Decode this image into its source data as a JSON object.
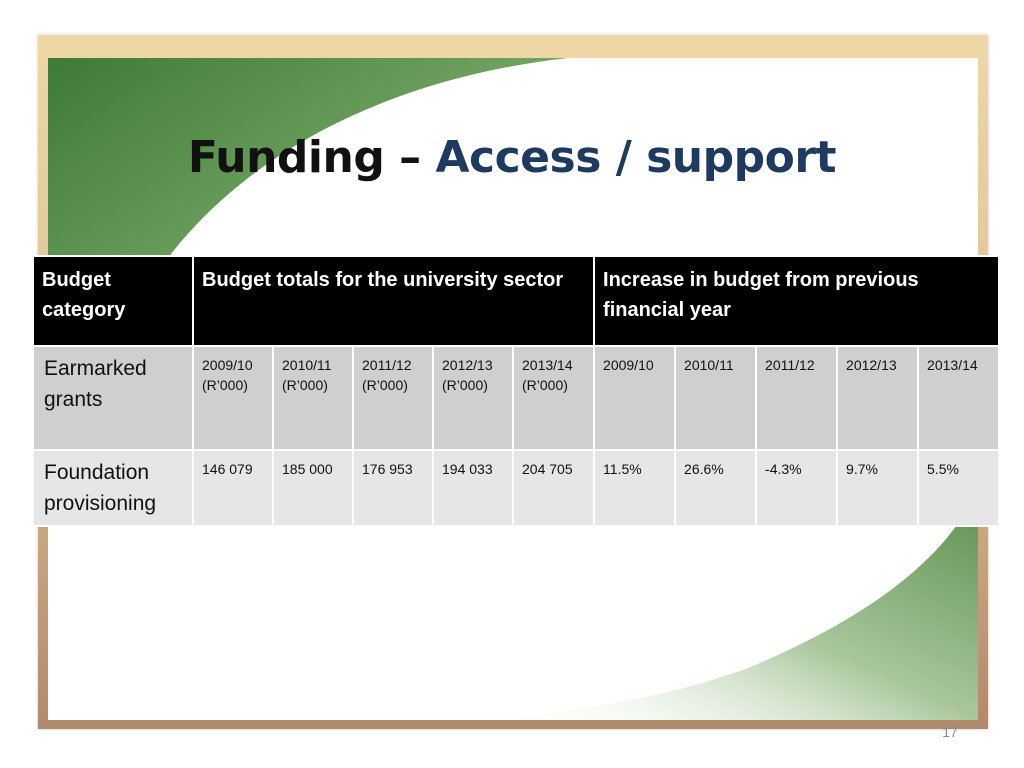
{
  "slide": {
    "title_part1": "Funding – ",
    "title_part2": "Access / support",
    "page_number": "17"
  },
  "table": {
    "headers": {
      "category": "Budget category",
      "totals": "Budget totals for the university sector",
      "increase": "Increase in budget from previous financial year"
    },
    "rows": [
      {
        "category": "Earmarked grants",
        "cells": [
          "2009/10 (R’000)",
          "2010/11 (R’000)",
          "2011/12 (R’000)",
          "2012/13 (R’000)",
          "2013/14 (R’000)",
          "2009/10",
          "2010/11",
          "2011/12",
          "2012/13",
          "2013/14"
        ]
      },
      {
        "category": "Foundation provisioning",
        "cells": [
          "146 079",
          "185 000",
          "176 953",
          "194 033",
          "204 705",
          "11.5%",
          "26.6%",
          "-4.3%",
          "9.7%",
          "5.5%"
        ]
      }
    ]
  },
  "colors": {
    "title_accent": "#1f3a5f",
    "header_bg": "#000000",
    "row_dark": "#cfcfcf",
    "row_light": "#e6e6e6",
    "frame_gold": "#efd7a6",
    "frame_brown": "#b08a6c",
    "swoosh_green": "#4f8a45"
  }
}
